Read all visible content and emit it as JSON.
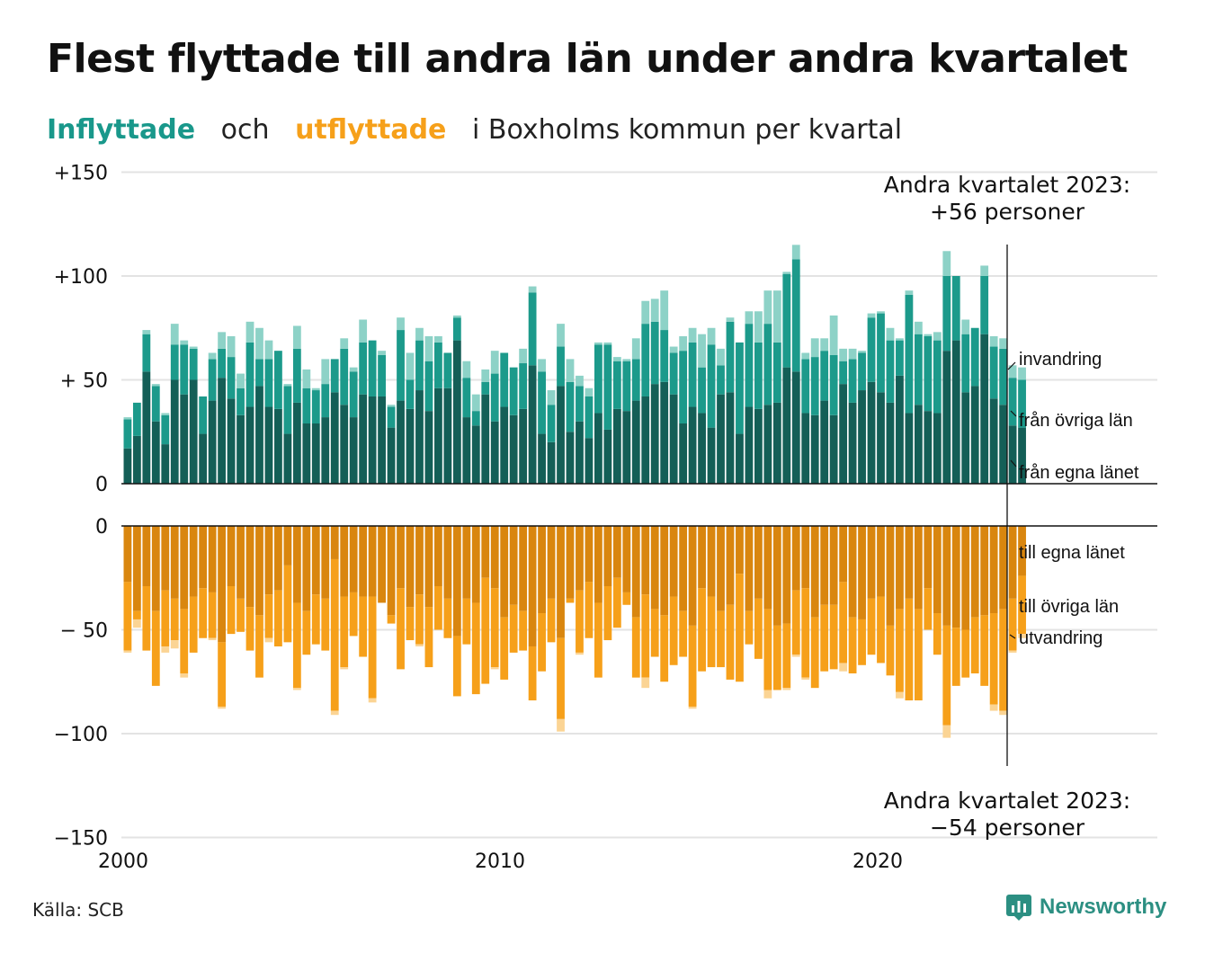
{
  "title": "Flest flyttade till andra län under andra kvartalet",
  "subtitle": {
    "in_word": "Inflyttade",
    "and_word": "och",
    "out_word": "utflyttade",
    "rest": "i Boxholms kommun per kvartal"
  },
  "source": "Källa: SCB",
  "brand": "Newsworthy",
  "colors": {
    "in_own": "#145f57",
    "in_other": "#1c9a8b",
    "in_immigration": "#8dd2c7",
    "out_own": "#d9860f",
    "out_other": "#f6a01a",
    "out_emigration": "#fbd494",
    "grid": "#e3e3e3",
    "brand": "#2c8f82"
  },
  "chart_data": {
    "type": "bar",
    "stacked": true,
    "x_ticks": [
      "2000",
      "2010",
      "2020"
    ],
    "upper_y_ticks": [
      "+150",
      "+100",
      "+ 50",
      "0"
    ],
    "lower_y_ticks": [
      "0",
      "− 50",
      "−100",
      "−150"
    ],
    "ylim_upper": [
      0,
      150
    ],
    "ylim_lower": [
      -150,
      0
    ],
    "grid": true,
    "series_labels_in": [
      "invandring",
      "från övriga län",
      "från egna länet"
    ],
    "series_labels_out": [
      "till egna länet",
      "till övriga län",
      "utvandring"
    ],
    "annotation_top": [
      "Andra kvartalet 2023:",
      "+56 personer"
    ],
    "annotation_bottom": [
      "Andra kvartalet 2023:",
      "−54 personer"
    ],
    "inflyttade": [
      [
        17,
        14,
        1
      ],
      [
        23,
        16,
        0
      ],
      [
        54,
        18,
        2
      ],
      [
        30,
        17,
        1
      ],
      [
        19,
        14,
        1
      ],
      [
        50,
        17,
        10
      ],
      [
        43,
        24,
        2
      ],
      [
        50,
        15,
        1
      ],
      [
        24,
        18,
        0
      ],
      [
        40,
        20,
        3
      ],
      [
        51,
        14,
        8
      ],
      [
        41,
        20,
        10
      ],
      [
        33,
        13,
        7
      ],
      [
        37,
        31,
        10
      ],
      [
        47,
        13,
        15
      ],
      [
        37,
        23,
        9
      ],
      [
        36,
        28,
        0
      ],
      [
        24,
        23,
        1
      ],
      [
        39,
        26,
        11
      ],
      [
        29,
        17,
        9
      ],
      [
        29,
        16,
        1
      ],
      [
        32,
        16,
        12
      ],
      [
        44,
        16,
        0
      ],
      [
        38,
        27,
        5
      ],
      [
        32,
        22,
        2
      ],
      [
        43,
        25,
        11
      ],
      [
        42,
        27,
        0
      ],
      [
        42,
        20,
        2
      ],
      [
        27,
        10,
        1
      ],
      [
        40,
        34,
        6
      ],
      [
        36,
        14,
        13
      ],
      [
        45,
        24,
        6
      ],
      [
        35,
        24,
        12
      ],
      [
        46,
        22,
        3
      ],
      [
        46,
        17,
        0
      ],
      [
        69,
        11,
        1
      ],
      [
        32,
        19,
        8
      ],
      [
        28,
        7,
        8
      ],
      [
        43,
        6,
        6
      ],
      [
        30,
        23,
        11
      ],
      [
        37,
        26,
        0
      ],
      [
        33,
        23,
        0
      ],
      [
        36,
        22,
        7
      ],
      [
        57,
        35,
        3
      ],
      [
        24,
        30,
        6
      ],
      [
        20,
        18,
        7
      ],
      [
        47,
        19,
        11
      ],
      [
        25,
        24,
        11
      ],
      [
        30,
        17,
        5
      ],
      [
        22,
        20,
        4
      ],
      [
        34,
        33,
        1
      ],
      [
        26,
        41,
        1
      ],
      [
        36,
        23,
        2
      ],
      [
        35,
        24,
        1
      ],
      [
        40,
        20,
        10
      ],
      [
        42,
        35,
        11
      ],
      [
        48,
        30,
        11
      ],
      [
        49,
        25,
        19
      ],
      [
        43,
        20,
        3
      ],
      [
        29,
        35,
        7
      ],
      [
        37,
        31,
        7
      ],
      [
        34,
        22,
        16
      ],
      [
        27,
        40,
        8
      ],
      [
        43,
        14,
        8
      ],
      [
        44,
        34,
        2
      ],
      [
        24,
        44,
        0
      ],
      [
        37,
        40,
        6
      ],
      [
        36,
        32,
        15
      ],
      [
        38,
        39,
        16
      ],
      [
        39,
        29,
        25
      ],
      [
        56,
        45,
        1
      ],
      [
        54,
        54,
        7
      ],
      [
        34,
        26,
        3
      ],
      [
        33,
        28,
        9
      ],
      [
        40,
        24,
        6
      ],
      [
        33,
        29,
        19
      ],
      [
        48,
        11,
        6
      ],
      [
        39,
        21,
        5
      ],
      [
        45,
        18,
        1
      ],
      [
        49,
        31,
        2
      ],
      [
        44,
        38,
        1
      ],
      [
        39,
        30,
        6
      ],
      [
        52,
        17,
        1
      ],
      [
        34,
        57,
        2
      ],
      [
        38,
        34,
        6
      ],
      [
        35,
        36,
        1
      ],
      [
        34,
        35,
        4
      ],
      [
        64,
        36,
        12
      ],
      [
        69,
        31,
        0
      ],
      [
        44,
        28,
        7
      ],
      [
        47,
        28,
        0
      ],
      [
        72,
        28,
        5
      ],
      [
        41,
        25,
        5
      ],
      [
        38,
        27,
        5
      ],
      [
        28,
        23,
        6
      ],
      [
        27,
        23,
        6
      ]
    ],
    "utflyttade": [
      [
        27,
        33,
        1
      ],
      [
        41,
        4,
        4
      ],
      [
        29,
        31,
        0
      ],
      [
        41,
        36,
        0
      ],
      [
        31,
        27,
        3
      ],
      [
        35,
        20,
        4
      ],
      [
        40,
        31,
        2
      ],
      [
        34,
        27,
        0
      ],
      [
        30,
        24,
        0
      ],
      [
        32,
        22,
        1
      ],
      [
        56,
        31,
        1
      ],
      [
        29,
        23,
        0
      ],
      [
        35,
        16,
        0
      ],
      [
        39,
        21,
        0
      ],
      [
        43,
        30,
        0
      ],
      [
        33,
        21,
        2
      ],
      [
        31,
        27,
        0
      ],
      [
        19,
        37,
        0
      ],
      [
        37,
        41,
        1
      ],
      [
        41,
        21,
        0
      ],
      [
        33,
        24,
        0
      ],
      [
        35,
        25,
        0
      ],
      [
        16,
        73,
        2
      ],
      [
        34,
        34,
        1
      ],
      [
        32,
        21,
        0
      ],
      [
        34,
        29,
        0
      ],
      [
        34,
        49,
        2
      ],
      [
        37,
        0,
        0
      ],
      [
        43,
        4,
        0
      ],
      [
        30,
        39,
        0
      ],
      [
        39,
        16,
        0
      ],
      [
        33,
        24,
        1
      ],
      [
        39,
        29,
        0
      ],
      [
        29,
        21,
        0
      ],
      [
        35,
        19,
        0
      ],
      [
        53,
        29,
        0
      ],
      [
        35,
        22,
        0
      ],
      [
        37,
        44,
        0
      ],
      [
        25,
        51,
        0
      ],
      [
        30,
        38,
        1
      ],
      [
        44,
        30,
        0
      ],
      [
        38,
        23,
        0
      ],
      [
        41,
        19,
        0
      ],
      [
        58,
        26,
        0
      ],
      [
        42,
        28,
        0
      ],
      [
        35,
        21,
        0
      ],
      [
        54,
        39,
        6
      ],
      [
        35,
        2,
        0
      ],
      [
        31,
        30,
        1
      ],
      [
        27,
        27,
        0
      ],
      [
        37,
        36,
        0
      ],
      [
        29,
        26,
        0
      ],
      [
        25,
        24,
        0
      ],
      [
        32,
        6,
        0
      ],
      [
        44,
        29,
        0
      ],
      [
        33,
        40,
        5
      ],
      [
        40,
        23,
        0
      ],
      [
        43,
        32,
        0
      ],
      [
        34,
        33,
        0
      ],
      [
        41,
        22,
        0
      ],
      [
        48,
        39,
        1
      ],
      [
        30,
        40,
        0
      ],
      [
        34,
        34,
        0
      ],
      [
        41,
        27,
        0
      ],
      [
        38,
        36,
        0
      ],
      [
        23,
        52,
        0
      ],
      [
        41,
        16,
        0
      ],
      [
        35,
        29,
        0
      ],
      [
        40,
        39,
        4
      ],
      [
        48,
        31,
        0
      ],
      [
        47,
        31,
        1
      ],
      [
        31,
        31,
        1
      ],
      [
        30,
        43,
        1
      ],
      [
        44,
        34,
        0
      ],
      [
        38,
        32,
        0
      ],
      [
        38,
        31,
        0
      ],
      [
        27,
        39,
        4
      ],
      [
        44,
        27,
        0
      ],
      [
        45,
        22,
        0
      ],
      [
        35,
        27,
        0
      ],
      [
        34,
        32,
        0
      ],
      [
        48,
        24,
        0
      ],
      [
        40,
        40,
        3
      ],
      [
        35,
        49,
        0
      ],
      [
        40,
        44,
        0
      ],
      [
        30,
        20,
        0
      ],
      [
        42,
        20,
        0
      ],
      [
        48,
        48,
        6
      ],
      [
        49,
        28,
        0
      ],
      [
        50,
        23,
        0
      ],
      [
        44,
        27,
        0
      ],
      [
        43,
        34,
        0
      ],
      [
        42,
        44,
        3
      ],
      [
        40,
        49,
        2
      ],
      [
        35,
        25,
        1
      ],
      [
        24,
        28,
        2
      ]
    ]
  }
}
